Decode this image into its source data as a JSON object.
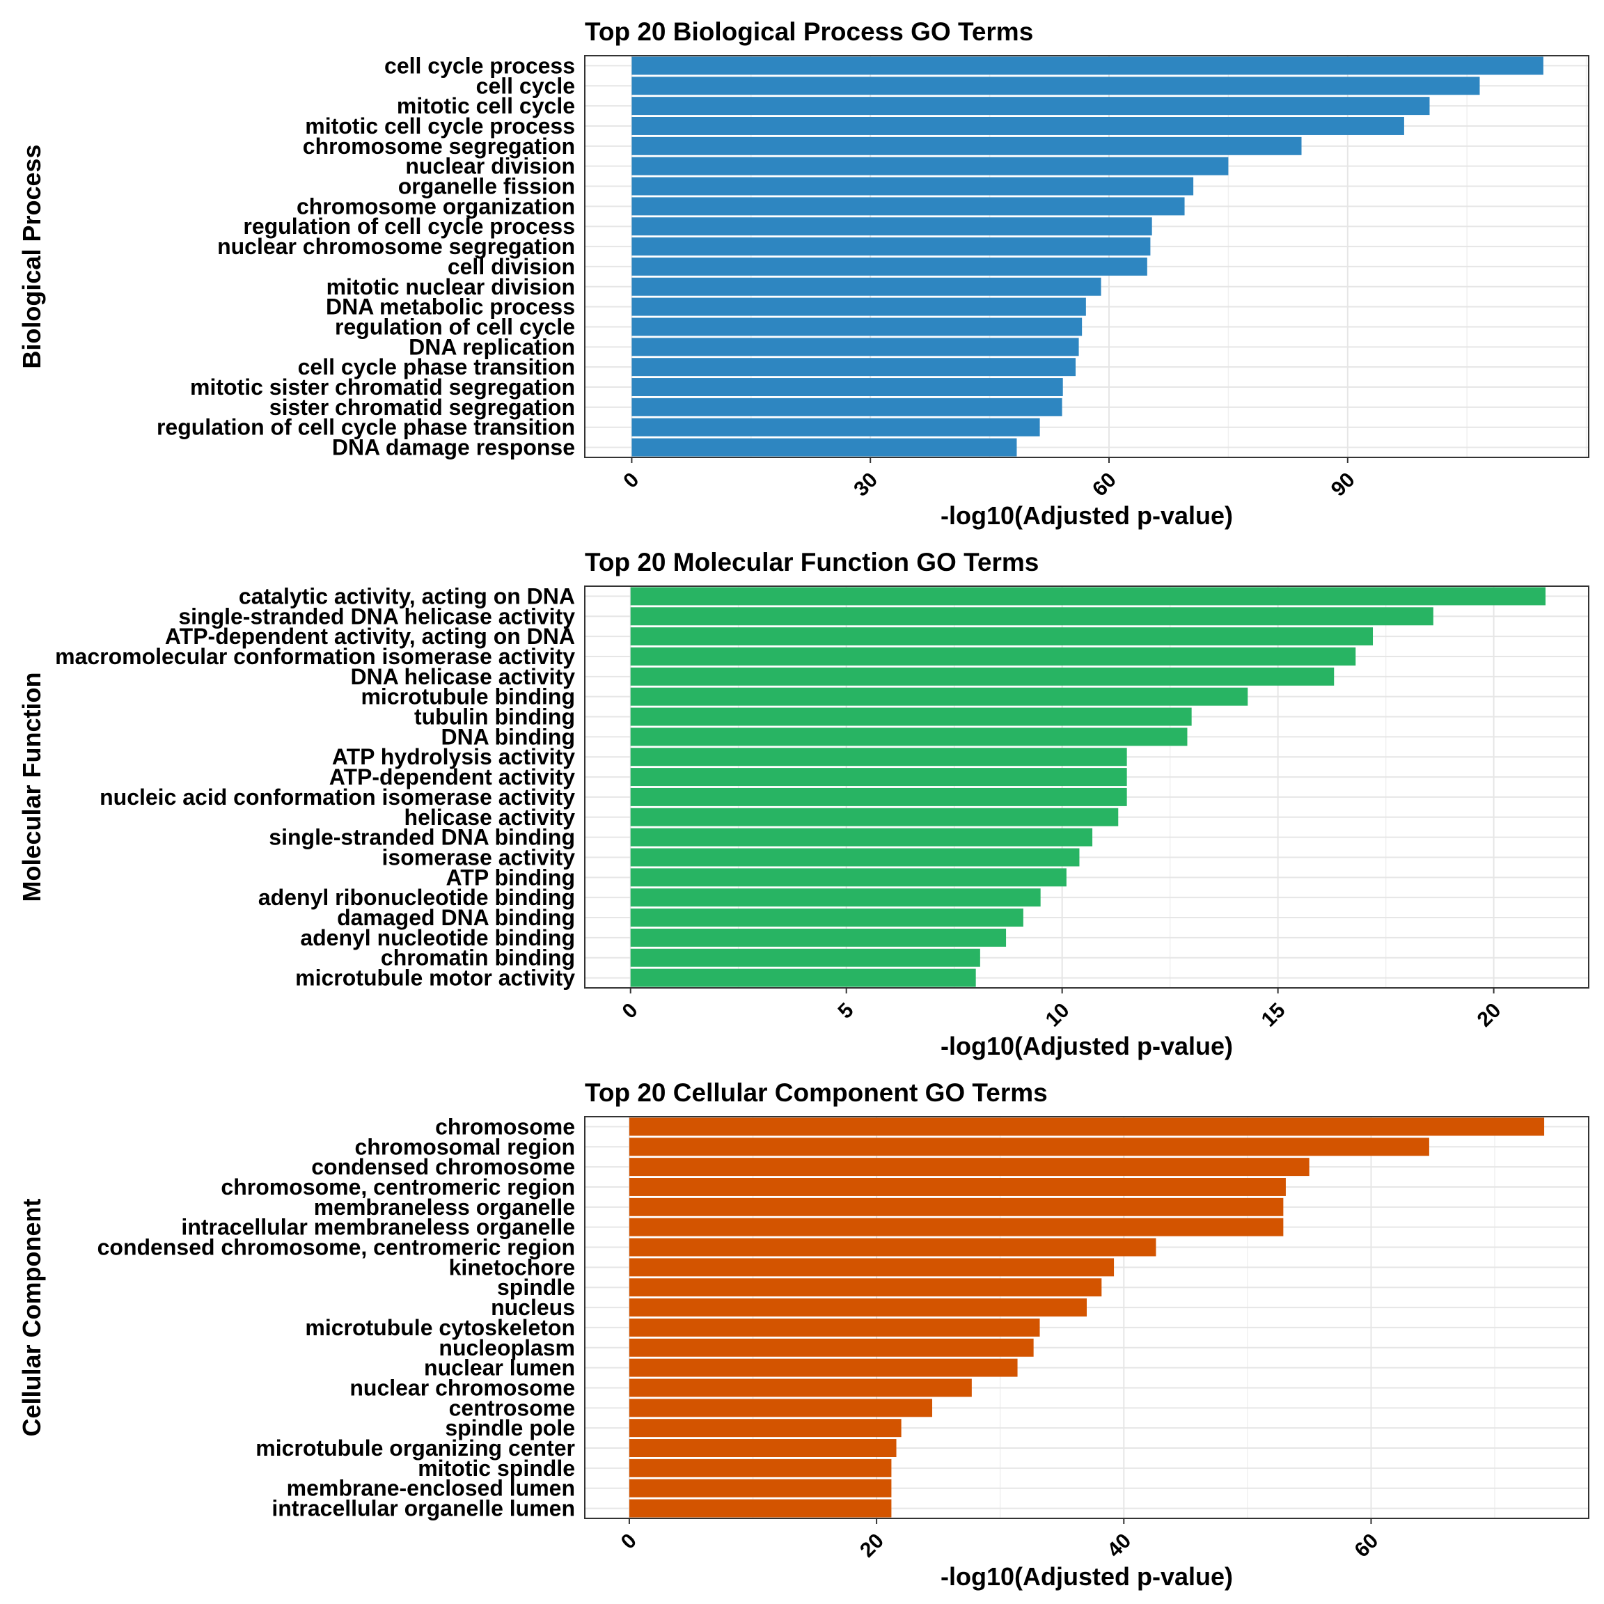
{
  "chart_data": [
    {
      "type": "bar",
      "orientation": "horizontal",
      "title": "Top 20 Biological Process GO Terms",
      "ylabel": "Biological Process",
      "xlabel": "-log10(Adjusted p-value)",
      "xlim": [
        -5.9,
        120.3
      ],
      "xticks": [
        0,
        30,
        60,
        90
      ],
      "color": "#2E86C1",
      "grid": true,
      "categories": [
        "cell cycle process",
        "cell cycle",
        "mitotic cell cycle",
        "mitotic cell cycle process",
        "chromosome segregation",
        "nuclear division",
        "organelle fission",
        "chromosome organization",
        "regulation of cell cycle process",
        "nuclear chromosome segregation",
        "cell division",
        "mitotic nuclear division",
        "DNA metabolic process",
        "regulation of cell cycle",
        "DNA replication",
        "cell cycle phase transition",
        "mitotic sister chromatid segregation",
        "sister chromatid segregation",
        "regulation of cell cycle phase transition",
        "DNA damage response"
      ],
      "values": [
        114.6,
        106.6,
        100.3,
        97.1,
        84.2,
        75.0,
        70.6,
        69.5,
        65.4,
        65.2,
        64.8,
        59.0,
        57.1,
        56.6,
        56.2,
        55.8,
        54.2,
        54.1,
        51.3,
        48.4
      ]
    },
    {
      "type": "bar",
      "orientation": "horizontal",
      "title": "Top 20 Molecular Function GO Terms",
      "ylabel": "Molecular Function",
      "xlabel": "-log10(Adjusted p-value)",
      "xlim": [
        -1.06,
        22.2
      ],
      "xticks": [
        0,
        5,
        10,
        15,
        20
      ],
      "color": "#28B463",
      "grid": true,
      "categories": [
        "catalytic activity, acting on DNA",
        "single-stranded DNA helicase activity",
        "ATP-dependent activity, acting on DNA",
        "macromolecular conformation isomerase activity",
        "DNA helicase activity",
        "microtubule binding",
        "tubulin binding",
        "DNA binding",
        "ATP hydrolysis activity",
        "ATP-dependent activity",
        "nucleic acid conformation isomerase activity",
        "helicase activity",
        "single-stranded DNA binding",
        "isomerase activity",
        "ATP binding",
        "adenyl ribonucleotide binding",
        "damaged DNA binding",
        "adenyl nucleotide binding",
        "chromatin binding",
        "microtubule motor activity"
      ],
      "values": [
        21.2,
        18.6,
        17.2,
        16.8,
        16.3,
        14.3,
        13.0,
        12.9,
        11.5,
        11.5,
        11.5,
        11.3,
        10.7,
        10.4,
        10.1,
        9.5,
        9.1,
        8.7,
        8.1,
        8.0
      ]
    },
    {
      "type": "bar",
      "orientation": "horizontal",
      "title": "Top 20 Cellular Component GO Terms",
      "ylabel": "Cellular Component",
      "xlabel": "-log10(Adjusted p-value)",
      "xlim": [
        -3.6,
        77.6
      ],
      "xticks": [
        0,
        20,
        40,
        60
      ],
      "color": "#D35400",
      "grid": true,
      "categories": [
        "chromosome",
        "chromosomal region",
        "condensed chromosome",
        "chromosome, centromeric region",
        "membraneless organelle",
        "intracellular membraneless organelle",
        "condensed chromosome, centromeric region",
        "kinetochore",
        "spindle",
        "nucleus",
        "microtubule cytoskeleton",
        "nucleoplasm",
        "nuclear lumen",
        "nuclear chromosome",
        "centrosome",
        "spindle pole",
        "microtubule organizing center",
        "mitotic spindle",
        "membrane-enclosed lumen",
        "intracellular organelle lumen"
      ],
      "values": [
        74.0,
        64.7,
        55.0,
        53.1,
        52.9,
        52.9,
        42.6,
        39.2,
        38.2,
        37.0,
        33.2,
        32.7,
        31.4,
        27.7,
        24.5,
        22.0,
        21.6,
        21.2,
        21.2,
        21.2
      ]
    }
  ]
}
